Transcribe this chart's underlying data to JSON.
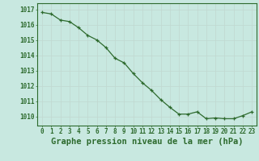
{
  "hours": [
    0,
    1,
    2,
    3,
    4,
    5,
    6,
    7,
    8,
    9,
    10,
    11,
    12,
    13,
    14,
    15,
    16,
    17,
    18,
    19,
    20,
    21,
    22,
    23
  ],
  "pressure": [
    1016.8,
    1016.7,
    1016.3,
    1016.2,
    1015.8,
    1015.3,
    1015.0,
    1014.5,
    1013.8,
    1013.5,
    1012.8,
    1012.2,
    1011.7,
    1011.1,
    1010.6,
    1010.15,
    1010.15,
    1010.3,
    1009.85,
    1009.9,
    1009.85,
    1009.85,
    1010.05,
    1010.3
  ],
  "line_color": "#2d6a2d",
  "marker": "+",
  "bg_color": "#c8e8e0",
  "grid_color": "#c0d8d0",
  "ylabel_ticks": [
    1010,
    1011,
    1012,
    1013,
    1014,
    1015,
    1016,
    1017
  ],
  "xlabel": "Graphe pression niveau de la mer (hPa)",
  "ylim": [
    1009.4,
    1017.4
  ],
  "xlim": [
    -0.5,
    23.5
  ],
  "tick_fontsize": 5.5,
  "label_fontsize": 7.5
}
